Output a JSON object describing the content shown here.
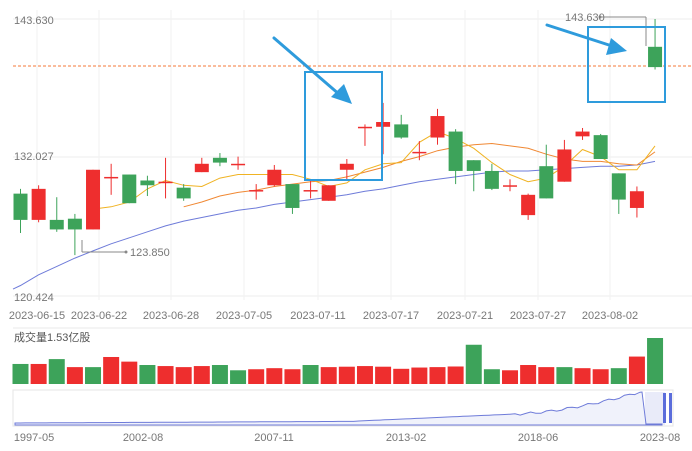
{
  "chart_data": [
    {
      "type": "candlestick",
      "title": "",
      "y_ticks": [
        "143.630",
        "132.027",
        "120.424"
      ],
      "ylim": [
        120.424,
        143.63
      ],
      "x_tick_labels": [
        "2023-06-15",
        "2023-06-22",
        "2023-06-28",
        "2023-07-05",
        "2023-07-11",
        "2023-07-17",
        "2023-07-21",
        "2023-07-27",
        "2023-08-02"
      ],
      "colors": {
        "up": "#ee2e2e",
        "down": "#3da35a",
        "ma5": "#f0b323",
        "ma10": "#f08833",
        "ma20": "#6e7bd9",
        "ref_line": "#f47a3a",
        "arrow": "#2e9bdc"
      },
      "reference_line": 139.3,
      "max_label": "143.630",
      "min_label": "123.850",
      "candles": [
        {
          "o": 129.0,
          "c": 126.8,
          "h": 129.4,
          "l": 125.7
        },
        {
          "o": 126.8,
          "c": 129.4,
          "h": 129.7,
          "l": 126.6
        },
        {
          "o": 126.8,
          "c": 126.0,
          "h": 128.7,
          "l": 125.8
        },
        {
          "o": 126.9,
          "c": 126.0,
          "h": 127.3,
          "l": 123.85
        },
        {
          "o": 126.0,
          "c": 131.0,
          "h": 131.0,
          "l": 126.0
        },
        {
          "o": 130.4,
          "c": 130.4,
          "h": 131.5,
          "l": 128.9
        },
        {
          "o": 130.6,
          "c": 128.2,
          "h": 130.6,
          "l": 128.2
        },
        {
          "o": 130.1,
          "c": 129.7,
          "h": 130.5,
          "l": 128.8
        },
        {
          "o": 130.0,
          "c": 130.0,
          "h": 132.0,
          "l": 128.6
        },
        {
          "o": 129.5,
          "c": 128.6,
          "h": 129.8,
          "l": 128.4
        },
        {
          "o": 130.8,
          "c": 131.5,
          "h": 132.0,
          "l": 130.8
        },
        {
          "o": 132.0,
          "c": 131.6,
          "h": 132.4,
          "l": 131.3
        },
        {
          "o": 131.5,
          "c": 131.5,
          "h": 132.1,
          "l": 131.0
        },
        {
          "o": 129.3,
          "c": 129.3,
          "h": 129.8,
          "l": 128.5
        },
        {
          "o": 129.7,
          "c": 131.0,
          "h": 131.4,
          "l": 129.6
        },
        {
          "o": 129.8,
          "c": 127.8,
          "h": 129.8,
          "l": 127.3
        },
        {
          "o": 129.3,
          "c": 129.3,
          "h": 130.1,
          "l": 128.6
        },
        {
          "o": 128.4,
          "c": 129.7,
          "h": 129.7,
          "l": 128.4
        },
        {
          "o": 131.0,
          "c": 131.5,
          "h": 131.9,
          "l": 130.2
        },
        {
          "o": 134.6,
          "c": 134.6,
          "h": 134.8,
          "l": 133.0
        },
        {
          "o": 134.6,
          "c": 135.0,
          "h": 136.6,
          "l": 132.3
        },
        {
          "o": 134.8,
          "c": 133.7,
          "h": 135.6,
          "l": 133.6
        },
        {
          "o": 132.5,
          "c": 132.5,
          "h": 133.4,
          "l": 131.8
        },
        {
          "o": 133.7,
          "c": 135.5,
          "h": 136.1,
          "l": 133.1
        },
        {
          "o": 134.2,
          "c": 130.9,
          "h": 134.4,
          "l": 129.8
        },
        {
          "o": 131.8,
          "c": 130.9,
          "h": 131.8,
          "l": 129.2
        },
        {
          "o": 130.9,
          "c": 129.4,
          "h": 131.5,
          "l": 129.3
        },
        {
          "o": 129.7,
          "c": 129.7,
          "h": 130.2,
          "l": 129.2
        },
        {
          "o": 127.2,
          "c": 128.9,
          "h": 129.0,
          "l": 126.8
        },
        {
          "o": 131.3,
          "c": 128.6,
          "h": 133.1,
          "l": 128.6
        },
        {
          "o": 130.0,
          "c": 132.7,
          "h": 133.5,
          "l": 130.0
        },
        {
          "o": 133.8,
          "c": 134.2,
          "h": 134.5,
          "l": 133.5
        },
        {
          "o": 133.9,
          "c": 131.9,
          "h": 134.0,
          "l": 131.9
        },
        {
          "o": 130.7,
          "c": 128.5,
          "h": 130.7,
          "l": 127.3
        },
        {
          "o": 127.8,
          "c": 129.2,
          "h": 129.6,
          "l": 127.0
        },
        {
          "o": 141.3,
          "c": 139.6,
          "h": 143.63,
          "l": 139.4
        }
      ],
      "ma": [
        {
          "name": "MA5",
          "values": [
            null,
            null,
            null,
            null,
            127.7,
            127.9,
            128.3,
            129.4,
            130.1,
            129.7,
            129.6,
            130.3,
            130.6,
            130.6,
            130.6,
            130.6,
            130.2,
            129.6,
            129.9,
            131.0,
            131.5,
            131.6,
            133.3,
            134.2,
            133.6,
            132.8,
            131.6,
            130.6,
            130.0,
            130.3,
            131.3,
            132.7,
            132.1,
            131.0,
            131.0,
            133.0
          ]
        },
        {
          "name": "MA10",
          "values": [
            null,
            null,
            null,
            null,
            null,
            null,
            null,
            null,
            null,
            127.9,
            128.3,
            128.8,
            129.1,
            129.3,
            129.6,
            129.8,
            130.0,
            130.1,
            130.4,
            130.8,
            131.2,
            131.7,
            132.1,
            132.6,
            132.9,
            133.1,
            133.2,
            133.0,
            132.8,
            132.3,
            131.9,
            131.7,
            131.7,
            131.5,
            131.4,
            132.5
          ]
        },
        {
          "name": "MA20",
          "values": [
            121.3,
            122.2,
            122.9,
            123.6,
            124.2,
            124.8,
            125.3,
            125.8,
            126.3,
            126.7,
            127.0,
            127.3,
            127.6,
            127.8,
            128.1,
            128.3,
            128.5,
            128.7,
            128.9,
            129.2,
            129.4,
            129.7,
            130.0,
            130.2,
            130.4,
            130.6,
            130.8,
            130.9,
            130.9,
            131.0,
            131.1,
            131.2,
            131.3,
            131.3,
            131.4,
            131.7
          ]
        }
      ]
    },
    {
      "type": "bar",
      "title": "成交量1.53亿股",
      "values": [
        0.95,
        0.95,
        1.18,
        0.8,
        0.8,
        1.28,
        1.06,
        0.9,
        0.85,
        0.8,
        0.85,
        0.9,
        0.65,
        0.7,
        0.75,
        0.7,
        0.9,
        0.8,
        0.82,
        0.85,
        0.82,
        0.72,
        0.78,
        0.8,
        0.83,
        1.86,
        0.7,
        0.65,
        0.9,
        0.8,
        0.8,
        0.75,
        0.7,
        0.75,
        1.3,
        2.18
      ],
      "directions": [
        "down",
        "up",
        "down",
        "up",
        "down",
        "up",
        "up",
        "down",
        "up",
        "up",
        "up",
        "down",
        "down",
        "up",
        "up",
        "up",
        "down",
        "up",
        "up",
        "up",
        "up",
        "up",
        "up",
        "up",
        "up",
        "down",
        "down",
        "up",
        "up",
        "up",
        "down",
        "up",
        "up",
        "down",
        "up",
        "down"
      ]
    },
    {
      "type": "line",
      "x_tick_labels": [
        "1997-05",
        "2002-08",
        "2007-11",
        "2013-02",
        "2018-06",
        "2023-08"
      ]
    }
  ]
}
